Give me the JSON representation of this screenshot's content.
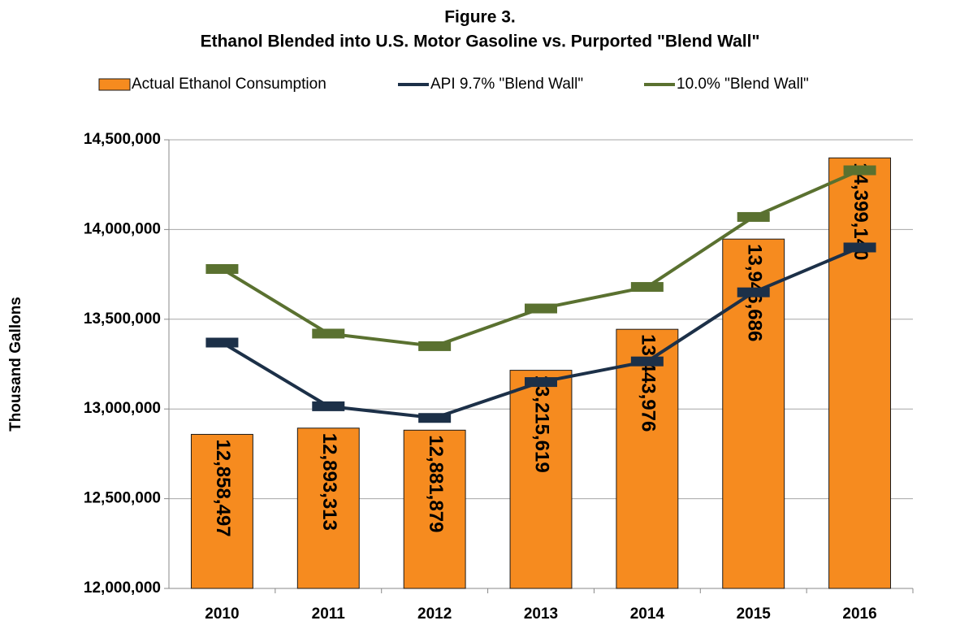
{
  "chart_data": {
    "type": "bar_line",
    "title": "Figure 3.",
    "subtitle": "Ethanol Blended into U.S. Motor Gasoline vs. Purported \"Blend Wall\"",
    "y_label": "Thousand Gallons",
    "categories": [
      "2010",
      "2011",
      "2012",
      "2013",
      "2014",
      "2015",
      "2016"
    ],
    "series": [
      {
        "name": "Actual Ethanol Consumption",
        "type": "bar",
        "color": "#f68b1f",
        "values": [
          12858497,
          12893313,
          12881879,
          13215619,
          13443976,
          13946686,
          14399140
        ],
        "value_labels": [
          "12,858,497",
          "12,893,313",
          "12,881,879",
          "13,215,619",
          "13,443,976",
          "13,946,686",
          "14,399,140"
        ]
      },
      {
        "name": "API 9.7% \"Blend Wall\"",
        "type": "line",
        "color": "#1c3048",
        "values": [
          13370000,
          13015000,
          12950000,
          13150000,
          13265000,
          13650000,
          13900000
        ]
      },
      {
        "name": "10.0% \"Blend Wall\"",
        "type": "line",
        "color": "#5a7130",
        "values": [
          13780000,
          13420000,
          13350000,
          13560000,
          13680000,
          14070000,
          14330000
        ]
      }
    ],
    "ylim": [
      12000000,
      14500000
    ],
    "yticks": [
      {
        "value": 12000000,
        "label": "12,000,000"
      },
      {
        "value": 12500000,
        "label": "12,500,000"
      },
      {
        "value": 13000000,
        "label": "13,000,000"
      },
      {
        "value": 13500000,
        "label": "13,500,000"
      },
      {
        "value": 14000000,
        "label": "14,000,000"
      },
      {
        "value": 14500000,
        "label": "14,500,000"
      }
    ],
    "grid": true,
    "legend": "top"
  }
}
